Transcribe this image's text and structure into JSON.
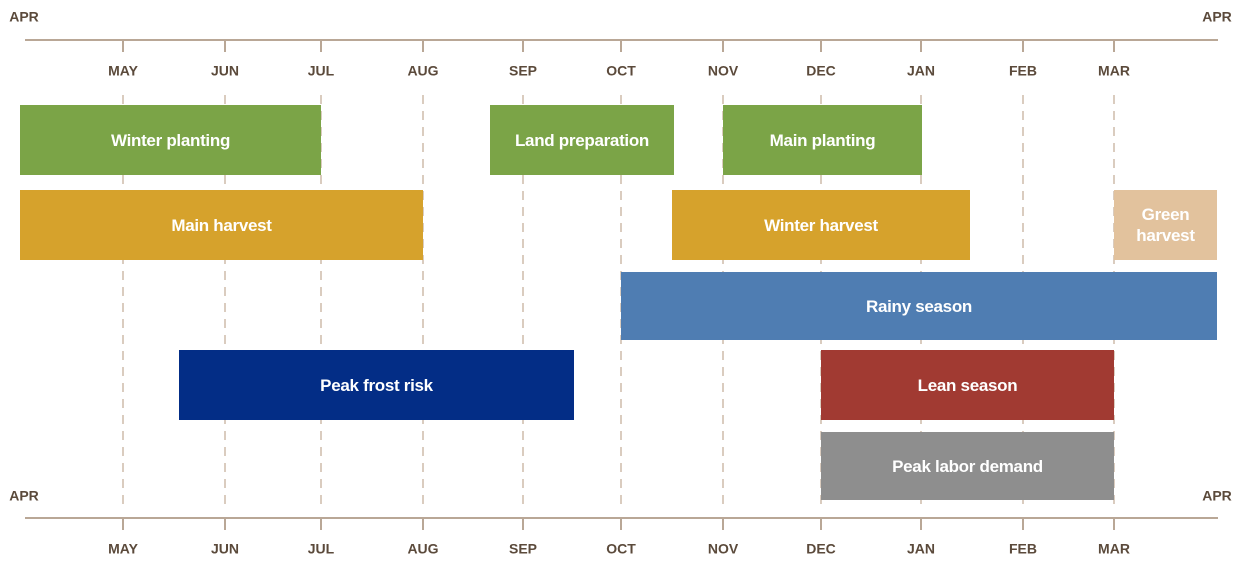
{
  "axis": {
    "start": "APR",
    "end": "APR",
    "months": [
      "MAY",
      "JUN",
      "JUL",
      "AUG",
      "SEP",
      "OCT",
      "NOV",
      "DEC",
      "JAN",
      "FEB",
      "MAR"
    ]
  },
  "activities": [
    {
      "label": "Winter planting",
      "color": "#7ba447"
    },
    {
      "label": "Land preparation",
      "color": "#7ba447"
    },
    {
      "label": "Main planting",
      "color": "#7ba447"
    },
    {
      "label": "Main harvest",
      "color": "#d6a22c"
    },
    {
      "label": "Winter harvest",
      "color": "#d6a22c"
    },
    {
      "label": "Green harvest",
      "color": "#e2c29d"
    },
    {
      "label": "Rainy season",
      "color": "#4f7db2"
    },
    {
      "label": "Peak frost risk",
      "color": "#032d86"
    },
    {
      "label": "Lean season",
      "color": "#a13a32"
    },
    {
      "label": "Peak labor demand",
      "color": "#8e8e8e"
    }
  ]
}
